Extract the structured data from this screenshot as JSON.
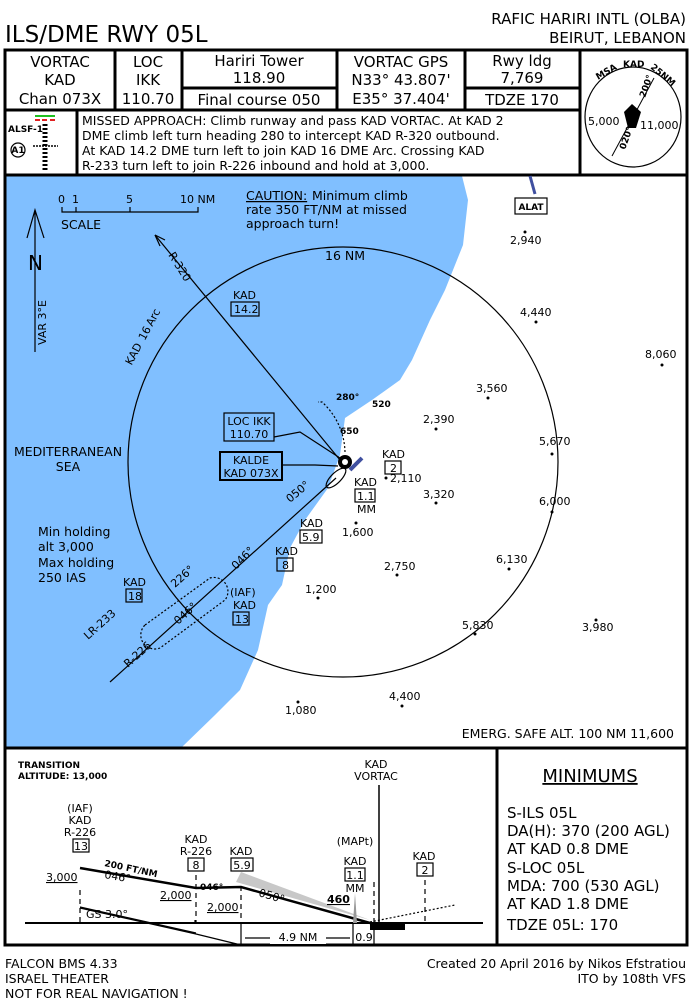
{
  "header": {
    "procedure_title": "ILS/DME RWY 05L",
    "airport_name": "RAFIC HARIRI INTL (OLBA)",
    "airport_location": "BEIRUT, LEBANON"
  },
  "info_boxes": {
    "vortac": [
      "VORTAC",
      "KAD",
      "Chan 073X"
    ],
    "loc": [
      "LOC",
      "IKK",
      "110.70"
    ],
    "tower": [
      "Hariri Tower",
      "118.90"
    ],
    "final_course": "Final course 050",
    "vortac_gps": [
      "VORTAC GPS",
      "N33° 43.807'",
      "E35° 37.404'"
    ],
    "runway": [
      "Rwy ldg",
      "7,769"
    ],
    "tdze": "TDZE 170"
  },
  "msa": {
    "label": "MSA",
    "fix": "KAD",
    "radius": "25NM",
    "bearing_1": "200°",
    "bearing_2": "020°",
    "alt_west": "5,000",
    "alt_east": "11,000"
  },
  "lighting": {
    "system": "ALSF-1",
    "symbol": "A1",
    "red": "#e02020",
    "green": "#20c020"
  },
  "missed_approach": [
    "MISSED APPROACH: Climb runway and pass KAD VORTAC. At KAD 2",
    "DME climb left turn heading 280 to intercept KAD R-320 outbound.",
    "At KAD 14.2 DME turn left to join KAD 16 DME Arc. Crossing KAD",
    "R-233 turn left to join R-226 inbound and hold at 3,000."
  ],
  "plan_view": {
    "water_color": "#80bfff",
    "scale": {
      "ticks": [
        "0",
        "1",
        "5",
        "10 NM"
      ],
      "label": "SCALE"
    },
    "north": {
      "label": "N",
      "variation": "VAR 3°E"
    },
    "caution": {
      "title": "CAUTION:",
      "lines": [
        "Minimum climb",
        "rate 350 FT/NM at missed",
        "approach turn!"
      ]
    },
    "arc_label": "16 NM",
    "arc_name": [
      "KAD",
      "16",
      "Arc"
    ],
    "radial_320": "R-320",
    "fix_14_2": [
      "KAD",
      "14.2"
    ],
    "loc_box": [
      "LOC IKK",
      "110.70"
    ],
    "vortac_box": [
      "KALDE",
      "KAD 073X"
    ],
    "sea": [
      "MEDITERRANEAN",
      "SEA"
    ],
    "holding": [
      "Min holding",
      "alt 3,000",
      "Max holding",
      "250 IAS"
    ],
    "fix_18": [
      "KAD",
      "18"
    ],
    "iaf": [
      "(IAF)",
      "KAD",
      "13"
    ],
    "fix_8": [
      "KAD",
      "8"
    ],
    "fix_5_9": [
      "KAD",
      "5.9"
    ],
    "fix_1_1": [
      "KAD",
      "1.1",
      "MM"
    ],
    "fix_2": [
      "KAD",
      "2"
    ],
    "headings": {
      "h280": "280°",
      "h050": "050°",
      "h046a": "046°",
      "h046b": "046°",
      "h226": "226°"
    },
    "radials": {
      "lr233": "LR-233",
      "r226": "R-226"
    },
    "obstacles": {
      "o520": "520",
      "o650": "650"
    },
    "alat": "ALAT",
    "elevations": [
      "2,940",
      "4,440",
      "8,060",
      "3,560",
      "2,390",
      "5,670",
      "2,110",
      "3,320",
      "6,000",
      "1,600",
      "2,750",
      "6,130",
      "1,200",
      "3,980",
      "5,830",
      "4,400",
      "1,080"
    ],
    "emergency_safe_alt": "EMERG. SAFE ALT. 100 NM 11,600"
  },
  "profile": {
    "transition": [
      "TRANSITION",
      "ALTITUDE: 13,000"
    ],
    "vortac": [
      "KAD",
      "VORTAC"
    ],
    "iaf": [
      "(IAF)",
      "KAD",
      "R-226",
      "13"
    ],
    "fix_8": [
      "KAD",
      "R-226",
      "8"
    ],
    "fix_5_9": [
      "KAD",
      "5.9"
    ],
    "mapt": [
      "(MAPt)",
      "KAD",
      "1.1",
      "MM"
    ],
    "fix_2": [
      "KAD",
      "2"
    ],
    "alt_3000": "3,000",
    "alt_2000a": "2,000",
    "alt_2000b": "2,000",
    "alt_460": "460",
    "descent": "200 FT/NM",
    "h046a": "046°",
    "h046b": "046°",
    "h050": "050°",
    "gs": "GS 3.0°",
    "dist_1": "4.9 NM",
    "dist_2": "0.9"
  },
  "minimums": {
    "title": "MINIMUMS",
    "ils": [
      "S-ILS 05L",
      "DA(H): 370 (200 AGL)",
      "AT KAD 0.8 DME"
    ],
    "loc": [
      "S-LOC 05L",
      "MDA: 700 (530 AGL)",
      "AT KAD 1.8 DME"
    ],
    "tdze": "TDZE 05L: 170"
  },
  "footer": {
    "sim": "FALCON BMS 4.33",
    "theater": "ISRAEL THEATER",
    "warning": "NOT FOR REAL NAVIGATION !",
    "warning_color": "#e00000",
    "credit": "Created 20 April 2016 by Nikos Efstratiou",
    "ito": "ITO by 108th VFS"
  }
}
